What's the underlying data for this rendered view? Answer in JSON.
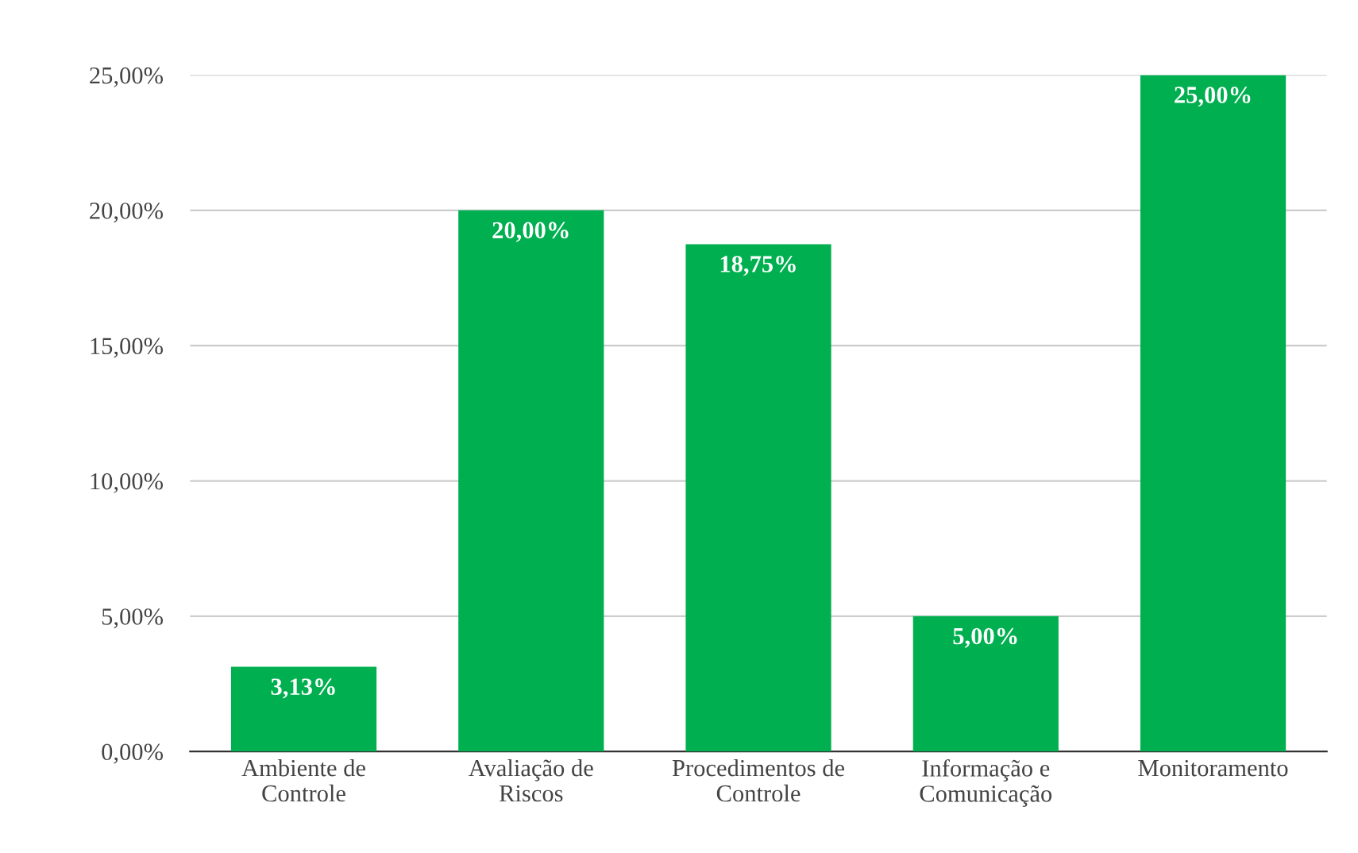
{
  "chart_data": {
    "type": "bar",
    "categories": [
      "Ambiente de\nControle",
      "Avaliação de\nRiscos",
      "Procedimentos de\nControle",
      "Informação e\nComunicação",
      "Monitoramento"
    ],
    "values": [
      3.13,
      20,
      18.75,
      5,
      25
    ],
    "value_labels": [
      "3,13%",
      "20,00%",
      "18,75%",
      "5,00%",
      "25,00%"
    ],
    "color": "#00b050",
    "ylim": [
      0,
      25
    ],
    "yticks": [
      {
        "value": 0,
        "label": "0,00%"
      },
      {
        "value": 5,
        "label": "5,00%"
      },
      {
        "value": 10,
        "label": "10,00%"
      },
      {
        "value": 15,
        "label": "15,00%"
      },
      {
        "value": 20,
        "label": "20,00%"
      },
      {
        "value": 25,
        "label": "25,00%"
      }
    ],
    "grid": "y",
    "legend": false
  }
}
